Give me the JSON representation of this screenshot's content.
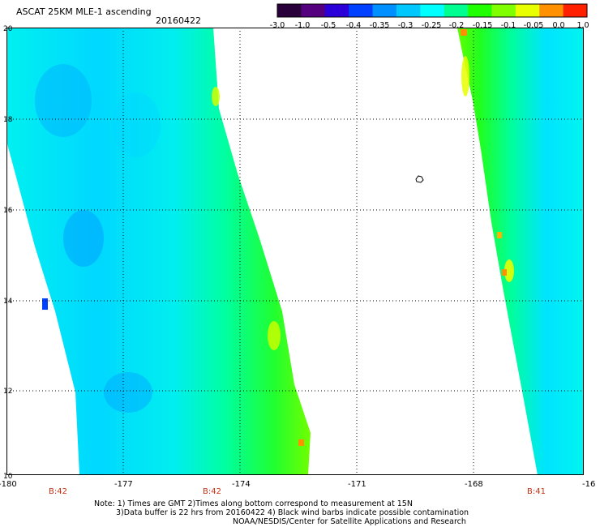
{
  "title": "ASCAT 25KM MLE-1 ascending",
  "date": "20160422",
  "colorbar": {
    "labels": [
      "-3.0",
      "-1.0",
      "-0.5",
      "-0.4",
      "-0.35",
      "-0.3",
      "-0.25",
      "-0.2",
      "-0.15",
      "-0.1",
      "-0.05",
      "0.0",
      "1.0"
    ],
    "colors": [
      "#2a003a",
      "#55007f",
      "#2b00d8",
      "#0040ff",
      "#0090ff",
      "#00c8ff",
      "#00ffff",
      "#00ff90",
      "#20ff00",
      "#80ff00",
      "#e8ff00",
      "#ff9000",
      "#ff2000"
    ]
  },
  "map": {
    "lon_labels": [
      "-180",
      "-177",
      "-174",
      "-171",
      "-168",
      "-16"
    ],
    "lat_labels": [
      "20",
      "18",
      "16",
      "14",
      "12",
      "10"
    ],
    "orbit_labels": [
      "B:42",
      "B:42",
      "B:41"
    ],
    "island_marker": "island-marker"
  },
  "notes": {
    "line1": "Note: 1) Times are GMT 2)Times along bottom correspond to measurement at 15N",
    "line2": "3)Data buffer is 22 hrs from 20160422 4) Black wind barbs indicate possible contamination",
    "line3": "NOAA/NESDIS/Center for Satellite Applications and Research"
  }
}
